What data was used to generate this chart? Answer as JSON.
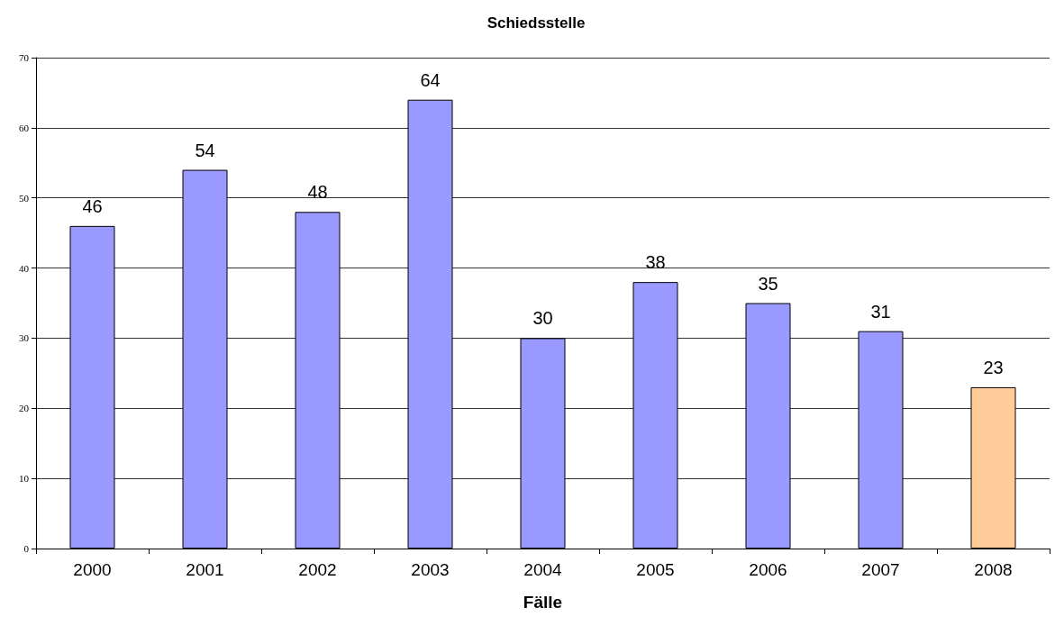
{
  "chart_data": {
    "type": "bar",
    "title": "Schiedsstelle",
    "xlabel": "Fälle",
    "categories": [
      "2000",
      "2001",
      "2002",
      "2003",
      "2004",
      "2005",
      "2006",
      "2007",
      "2008"
    ],
    "values": [
      46,
      54,
      48,
      64,
      30,
      38,
      35,
      31,
      23
    ],
    "colors": [
      "#9999ff",
      "#9999ff",
      "#9999ff",
      "#9999ff",
      "#9999ff",
      "#9999ff",
      "#9999ff",
      "#9999ff",
      "#ffcc99"
    ],
    "ylim": [
      0,
      70
    ],
    "yticks": [
      0,
      10,
      20,
      30,
      40,
      50,
      60,
      70
    ],
    "grid": "y",
    "data_labels": true
  }
}
